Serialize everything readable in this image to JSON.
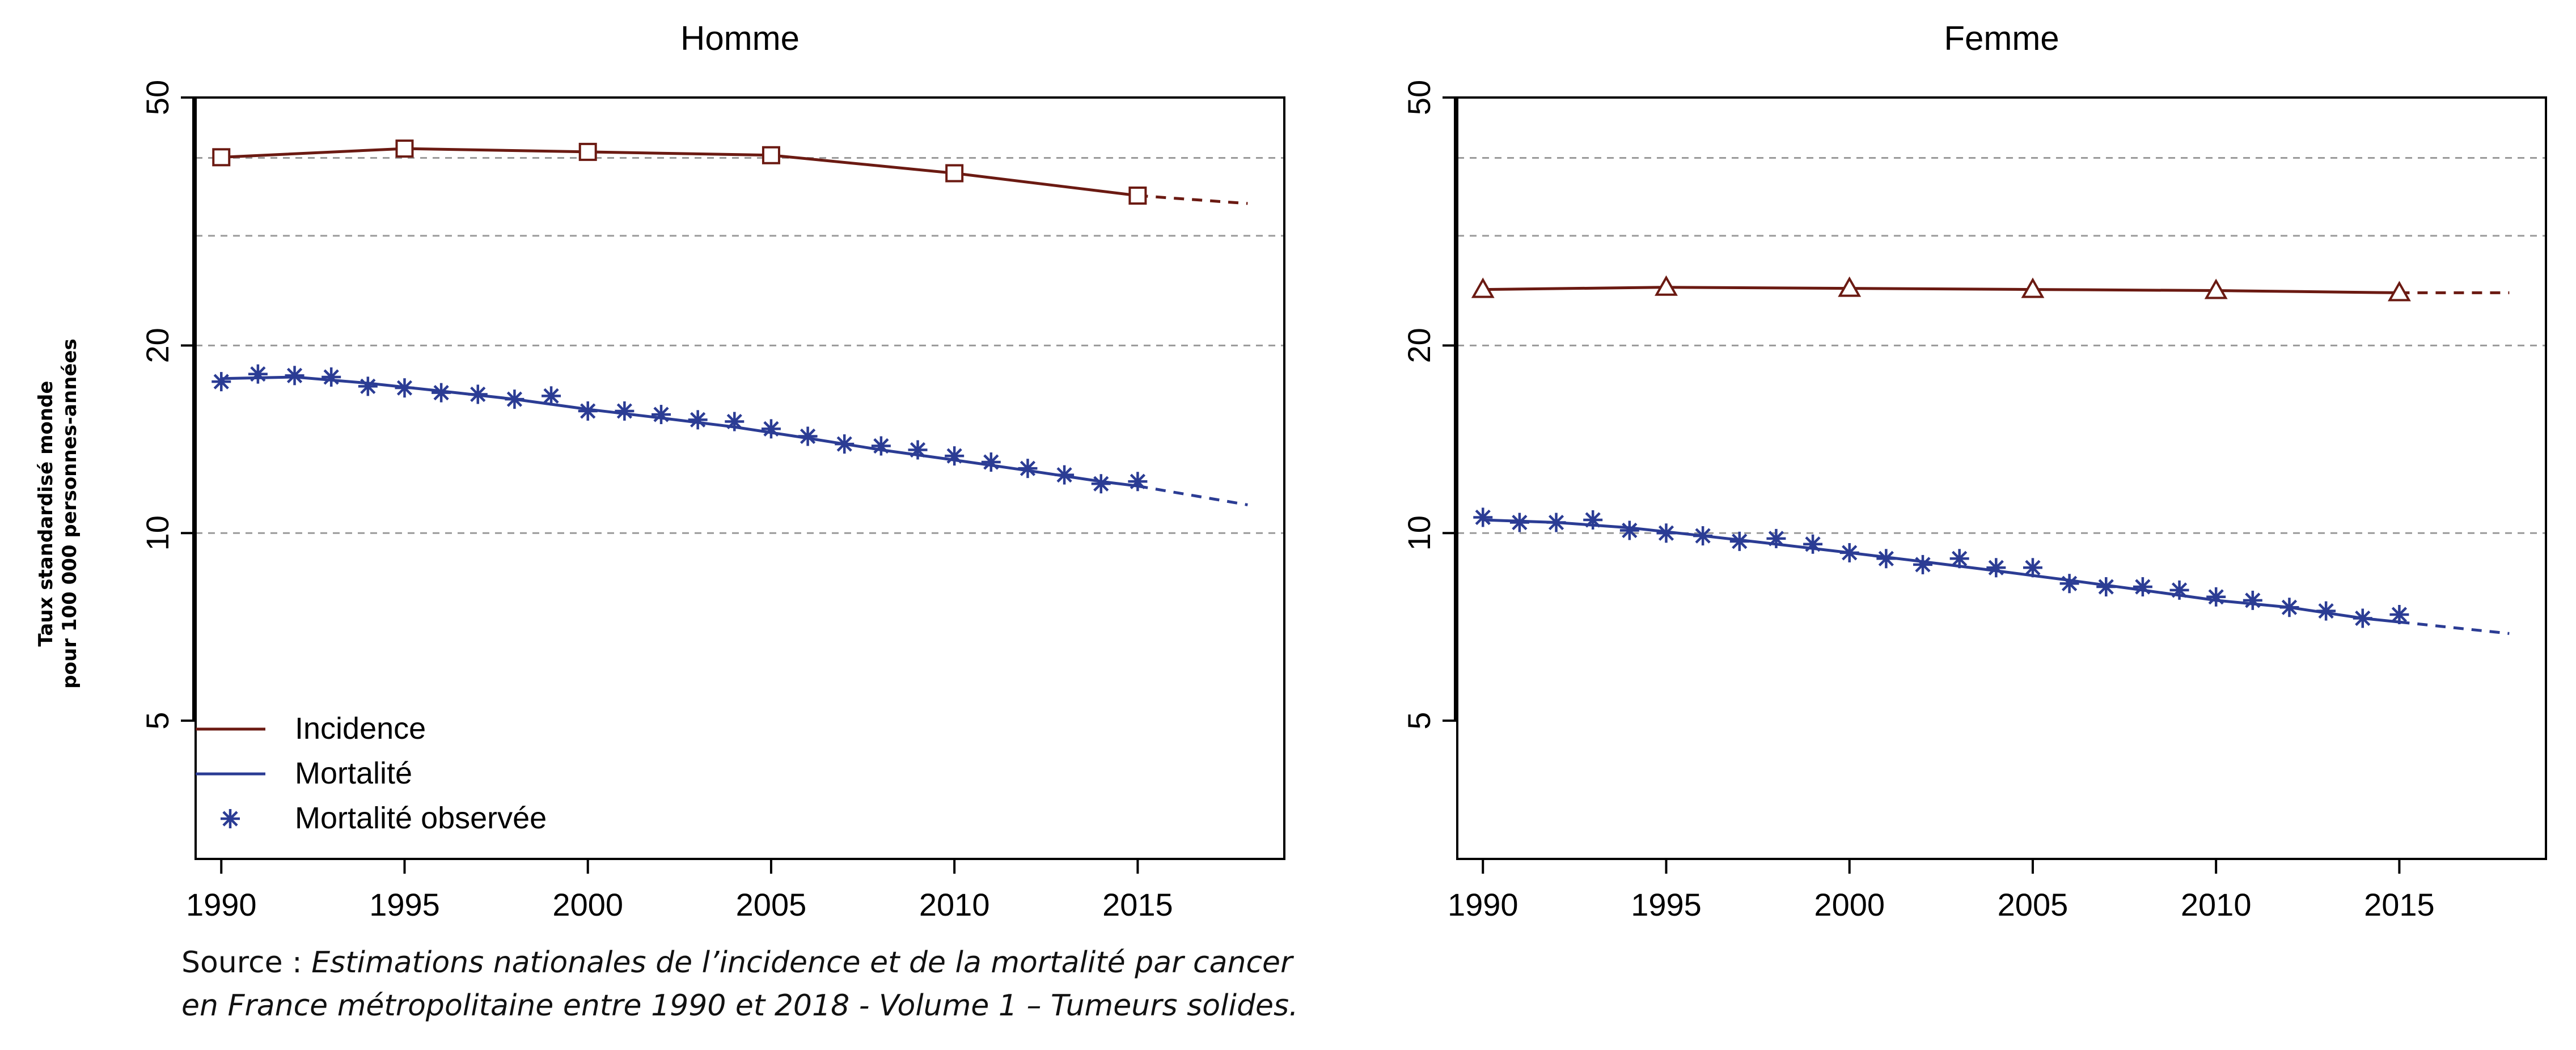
{
  "colors": {
    "incidence": "#6b1a12",
    "mortality": "#2b3c94",
    "grid": "#9a9a9a",
    "axis": "#000000"
  },
  "yaxis": {
    "label_line1": "Taux standardisé monde",
    "label_line2": "pour 100 000 personnes-années"
  },
  "legend": {
    "incidence": "Incidence",
    "mortality": "Mortalité",
    "observed": "Mortalité observée"
  },
  "source": {
    "label": "Source :",
    "text": "Estimations nationales de l’incidence et de la mortalité par cancer",
    "text2": "en France métropolitaine entre 1990 et 2018 - Volume 1 – Tumeurs solides."
  },
  "chart_data": [
    {
      "type": "line",
      "title": "Homme",
      "y_scale": "log",
      "ylim": [
        3,
        50
      ],
      "xlim": [
        1989.3,
        2019
      ],
      "yticks": [
        5,
        10,
        20,
        50
      ],
      "xticks": [
        1990,
        1995,
        2000,
        2005,
        2010,
        2015
      ],
      "grid_y": [
        10,
        20,
        30,
        40
      ],
      "legend_position": "bottom-left",
      "series": [
        {
          "name": "Incidence",
          "marker": "square",
          "x": [
            1990,
            1995,
            2000,
            2005,
            2010,
            2015
          ],
          "values": [
            40.1,
            41.4,
            40.9,
            40.4,
            37.8,
            34.8
          ],
          "projection": {
            "x": [
              2015,
              2018
            ],
            "values": [
              34.8,
              33.8
            ]
          }
        },
        {
          "name": "Mortalité",
          "x": [
            1990,
            1992,
            1994,
            1996,
            1998,
            2000,
            2002,
            2004,
            2006,
            2008,
            2010,
            2012,
            2014,
            2015
          ],
          "values": [
            17.7,
            17.8,
            17.4,
            16.9,
            16.4,
            15.8,
            15.3,
            14.8,
            14.2,
            13.6,
            13.1,
            12.6,
            12.1,
            11.9
          ],
          "projection": {
            "x": [
              2015,
              2018
            ],
            "values": [
              11.9,
              11.1
            ]
          }
        },
        {
          "name": "Mortalité observée",
          "marker": "asterisk",
          "x": [
            1990,
            1991,
            1992,
            1993,
            1994,
            1995,
            1996,
            1997,
            1998,
            1999,
            2000,
            2001,
            2002,
            2003,
            2004,
            2005,
            2006,
            2007,
            2008,
            2009,
            2010,
            2011,
            2012,
            2013,
            2014,
            2015
          ],
          "values": [
            17.5,
            18.0,
            17.9,
            17.8,
            17.2,
            17.1,
            16.8,
            16.7,
            16.4,
            16.6,
            15.7,
            15.7,
            15.5,
            15.2,
            15.1,
            14.7,
            14.3,
            13.9,
            13.8,
            13.6,
            13.3,
            13.0,
            12.7,
            12.4,
            12.0,
            12.1
          ]
        }
      ]
    },
    {
      "type": "line",
      "title": "Femme",
      "y_scale": "log",
      "ylim": [
        3,
        50
      ],
      "xlim": [
        1989.3,
        2019
      ],
      "yticks": [
        5,
        10,
        20,
        50
      ],
      "xticks": [
        1990,
        1995,
        2000,
        2005,
        2010,
        2015
      ],
      "grid_y": [
        10,
        20,
        30,
        40
      ],
      "series": [
        {
          "name": "Incidence",
          "marker": "triangle",
          "x": [
            1990,
            1995,
            2000,
            2005,
            2010,
            2015
          ],
          "values": [
            24.6,
            24.8,
            24.7,
            24.6,
            24.5,
            24.3
          ],
          "projection": {
            "x": [
              2015,
              2018
            ],
            "values": [
              24.3,
              24.3
            ]
          }
        },
        {
          "name": "Mortalité",
          "x": [
            1990,
            1992,
            1994,
            1996,
            1998,
            2000,
            2002,
            2004,
            2006,
            2008,
            2010,
            2012,
            2014,
            2015
          ],
          "values": [
            10.5,
            10.4,
            10.2,
            9.9,
            9.6,
            9.3,
            9.0,
            8.7,
            8.4,
            8.1,
            7.8,
            7.6,
            7.3,
            7.2
          ],
          "projection": {
            "x": [
              2015,
              2018
            ],
            "values": [
              7.2,
              6.9
            ]
          }
        },
        {
          "name": "Mortalité observée",
          "marker": "asterisk",
          "x": [
            1990,
            1991,
            1992,
            1993,
            1994,
            1995,
            1996,
            1997,
            1998,
            1999,
            2000,
            2001,
            2002,
            2003,
            2004,
            2005,
            2006,
            2007,
            2008,
            2009,
            2010,
            2011,
            2012,
            2013,
            2014,
            2015
          ],
          "values": [
            10.6,
            10.4,
            10.4,
            10.5,
            10.1,
            10.0,
            9.9,
            9.7,
            9.8,
            9.6,
            9.3,
            9.1,
            8.9,
            9.1,
            8.8,
            8.8,
            8.3,
            8.2,
            8.2,
            8.1,
            7.9,
            7.8,
            7.6,
            7.5,
            7.3,
            7.4
          ]
        }
      ]
    }
  ]
}
